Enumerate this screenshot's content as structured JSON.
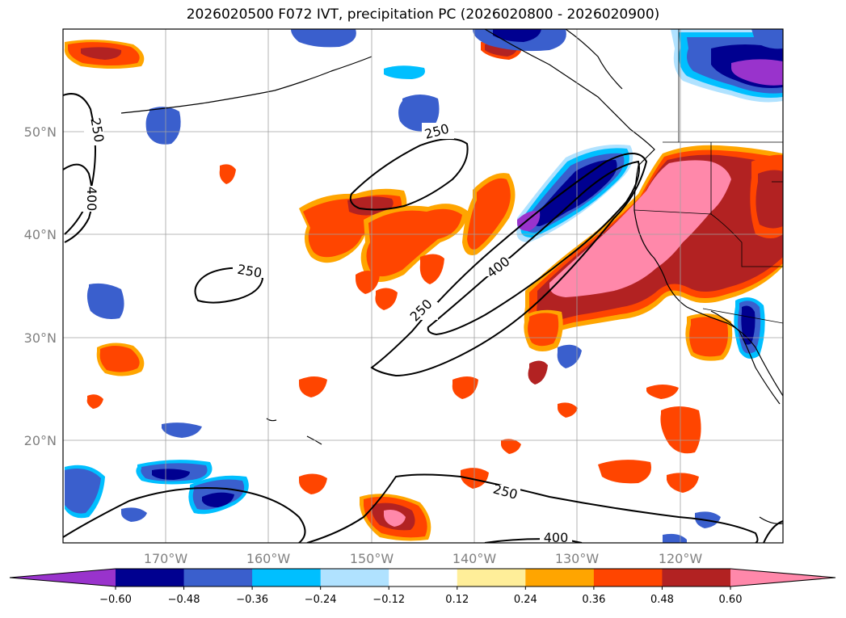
{
  "title": "2026020500 F072 IVT, precipitation PC (2026020800 - 2026020900)",
  "lon_labels": [
    "170°W",
    "160°W",
    "150°W",
    "140°W",
    "130°W",
    "120°W"
  ],
  "lat_labels": [
    "50°N",
    "40°N",
    "30°N",
    "20°N"
  ],
  "contour_labels": [
    "250",
    "400",
    "250",
    "250",
    "400",
    "250",
    "250",
    "400"
  ],
  "colorbar": {
    "ticks": [
      "−0.60",
      "−0.48",
      "−0.36",
      "−0.24",
      "−0.12",
      "0.12",
      "0.24",
      "0.36",
      "0.48",
      "0.60"
    ],
    "colors": [
      "#9933cc",
      "#000090",
      "#3a5fcd",
      "#00bfff",
      "#b0e2ff",
      "#ffffff",
      "#ffee99",
      "#ffa500",
      "#ff4500",
      "#b22222",
      "#ff88aa"
    ]
  },
  "colors": {
    "precip_pos_1": "#ffee99",
    "precip_pos_2": "#ffa500",
    "precip_pos_3": "#ff4500",
    "precip_pos_4": "#b22222",
    "precip_pos_5": "#ff88aa",
    "precip_neg_1": "#b0e2ff",
    "precip_neg_2": "#00bfff",
    "precip_neg_3": "#3a5fcd",
    "precip_neg_4": "#000090",
    "precip_neg_5": "#9933cc"
  }
}
